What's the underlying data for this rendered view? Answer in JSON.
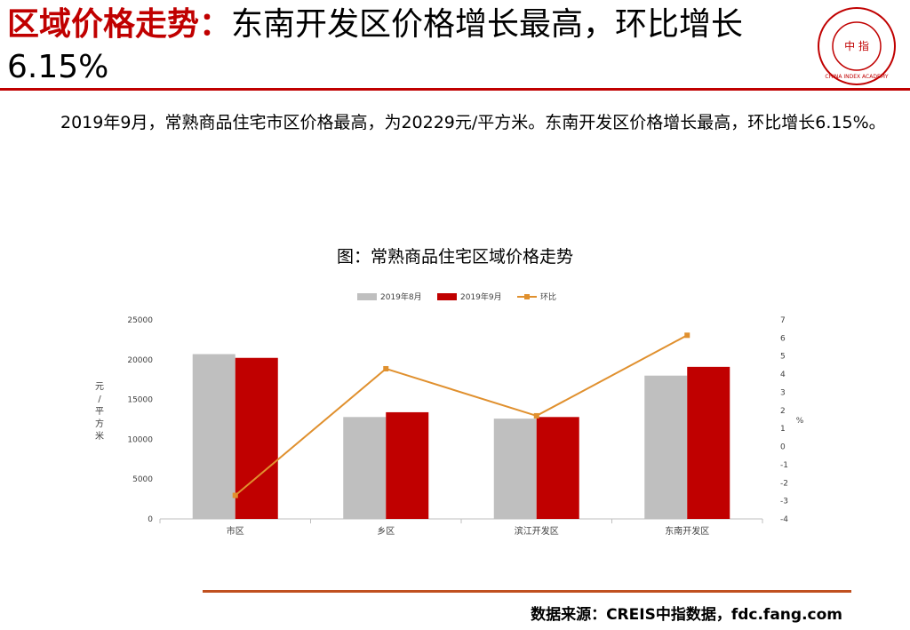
{
  "header": {
    "title_highlight": "区域价格走势：",
    "title_rest": "东南开发区价格增长最高，环比增长6.15%",
    "logo_label": "中 指",
    "logo_text": "CHINA INDEX ACADEMY"
  },
  "summary": "2019年9月，常熟商品住宅市区价格最高，为20229元/平方米。东南开发区价格增长最高，环比增长6.15%。",
  "chart_title": "图：常熟商品住宅区域价格走势",
  "colors": {
    "aug": "#bfbfbf",
    "sep": "#c00000",
    "mom": "#e0902e",
    "accent": "#c00000"
  },
  "chart_data": {
    "type": "bar",
    "categories": [
      "市区",
      "乡区",
      "滨江开发区",
      "东南开发区"
    ],
    "series": [
      {
        "name": "2019年8月",
        "type": "bar",
        "values": [
          20700,
          12800,
          12600,
          18000
        ]
      },
      {
        "name": "2019年9月",
        "type": "bar",
        "values": [
          20229,
          13400,
          12800,
          19100
        ]
      },
      {
        "name": "环比",
        "type": "line",
        "axis": "right",
        "values": [
          -2.7,
          4.3,
          1.7,
          6.15
        ]
      }
    ],
    "ylabel": "元/平方米",
    "ylabel_right": "%",
    "ylim": [
      0,
      25000
    ],
    "ylim_right": [
      -4,
      7
    ],
    "yticks": [
      "0",
      "5000",
      "10000",
      "15000",
      "20000",
      "25000"
    ],
    "yticks_right": [
      "-4",
      "-3",
      "-2",
      "-1",
      "0",
      "1",
      "2",
      "3",
      "4",
      "5",
      "6",
      "7"
    ],
    "legend_position": "top",
    "grid": false
  },
  "footer": {
    "source": "数据来源：CREIS中指数据，fdc.fang.com"
  }
}
